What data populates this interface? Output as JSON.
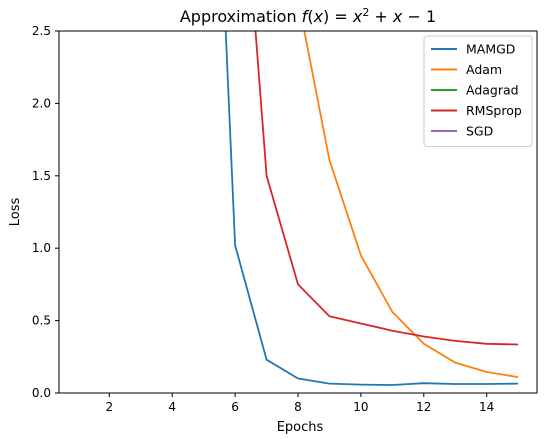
{
  "chart_data": {
    "type": "line",
    "title": "Approximation f(x) = x² + x − 1",
    "xlabel": "Epochs",
    "ylabel": "Loss",
    "xlim": [
      0.4,
      15.6
    ],
    "ylim": [
      0,
      2.5
    ],
    "xticks": [
      2,
      4,
      6,
      8,
      10,
      12,
      14
    ],
    "yticks": [
      0.0,
      0.5,
      1.0,
      1.5,
      2.0,
      2.5
    ],
    "grid": false,
    "legend_position": "top-right",
    "series": [
      {
        "name": "MAMGD",
        "color": "#1f77b4",
        "x": [
          5.7,
          6,
          7,
          8,
          9,
          10,
          11,
          12,
          13,
          14,
          15
        ],
        "y": [
          2.5,
          1.02,
          0.23,
          0.1,
          0.065,
          0.058,
          0.055,
          0.068,
          0.062,
          0.062,
          0.065
        ]
      },
      {
        "name": "Adam",
        "color": "#ff7f0e",
        "x": [
          8.2,
          9,
          10,
          11,
          12,
          13,
          14,
          15
        ],
        "y": [
          2.5,
          1.61,
          0.95,
          0.56,
          0.34,
          0.21,
          0.145,
          0.11
        ]
      },
      {
        "name": "Adagrad",
        "color": "#2ca02c",
        "x": [],
        "y": []
      },
      {
        "name": "RMSprop",
        "color": "#d62728",
        "x": [
          6.65,
          7,
          8,
          9,
          10,
          11,
          12,
          13,
          14,
          15
        ],
        "y": [
          2.5,
          1.5,
          0.75,
          0.53,
          0.48,
          0.43,
          0.39,
          0.36,
          0.34,
          0.335
        ]
      },
      {
        "name": "SGD",
        "color": "#9467bd",
        "x": [],
        "y": []
      }
    ]
  }
}
